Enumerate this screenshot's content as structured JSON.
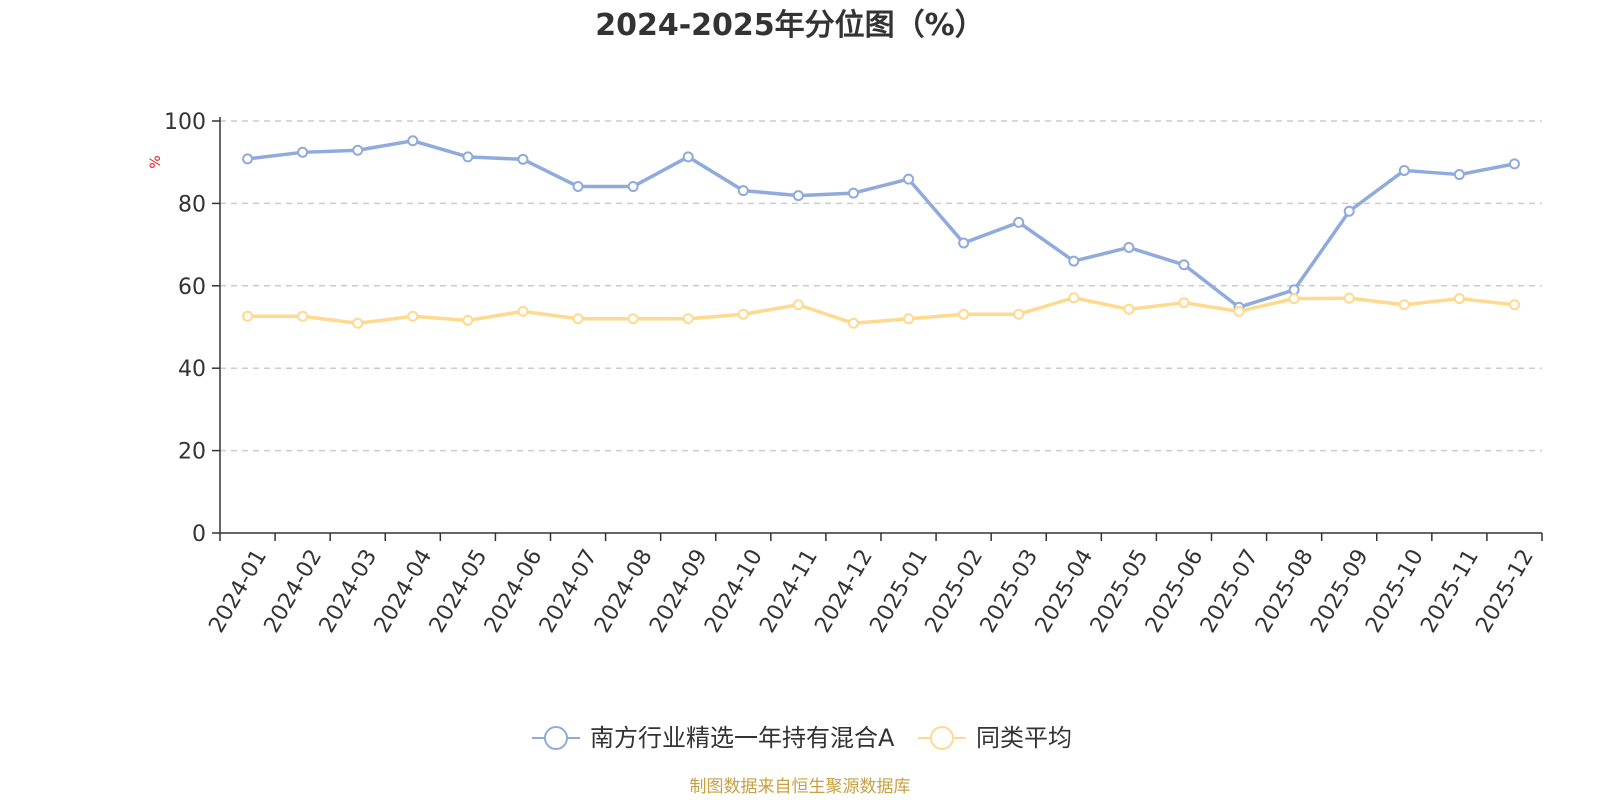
{
  "chart_data": {
    "type": "line",
    "title": "2024-2025年分位图（%）",
    "ylabel": "%",
    "ylim": [
      0,
      100
    ],
    "yticks": [
      0,
      20,
      40,
      60,
      80,
      100
    ],
    "grid": true,
    "legend_position": "bottom",
    "categories": [
      "2024-01",
      "2024-02",
      "2024-03",
      "2024-04",
      "2024-05",
      "2024-06",
      "2024-07",
      "2024-08",
      "2024-09",
      "2024-10",
      "2024-11",
      "2024-12",
      "2025-01",
      "2025-02",
      "2025-03",
      "2025-04",
      "2025-05",
      "2025-06",
      "2025-07",
      "2025-08",
      "2025-09",
      "2025-10",
      "2025-11",
      "2025-12"
    ],
    "series": [
      {
        "name": "南方行业精选一年持有混合A",
        "color": "#8faadc",
        "values": [
          90.8,
          92.4,
          92.9,
          95.2,
          91.3,
          90.7,
          84.1,
          84.1,
          91.3,
          83.1,
          81.9,
          82.5,
          85.9,
          70.4,
          75.4,
          66.0,
          69.3,
          65.1,
          54.8,
          59.0,
          78.1,
          88.0,
          87.0,
          89.6
        ]
      },
      {
        "name": "同类平均",
        "color": "#ffd98e",
        "values": [
          52.6,
          52.6,
          50.9,
          52.6,
          51.6,
          53.8,
          52.0,
          52.0,
          52.0,
          53.1,
          55.4,
          50.9,
          52.0,
          53.1,
          53.1,
          57.1,
          54.3,
          55.9,
          53.8,
          56.9,
          57.0,
          55.4,
          56.9,
          55.4
        ]
      }
    ]
  },
  "source_text": "制图数据来自恒生聚源数据库",
  "source_color": "#c8a040"
}
